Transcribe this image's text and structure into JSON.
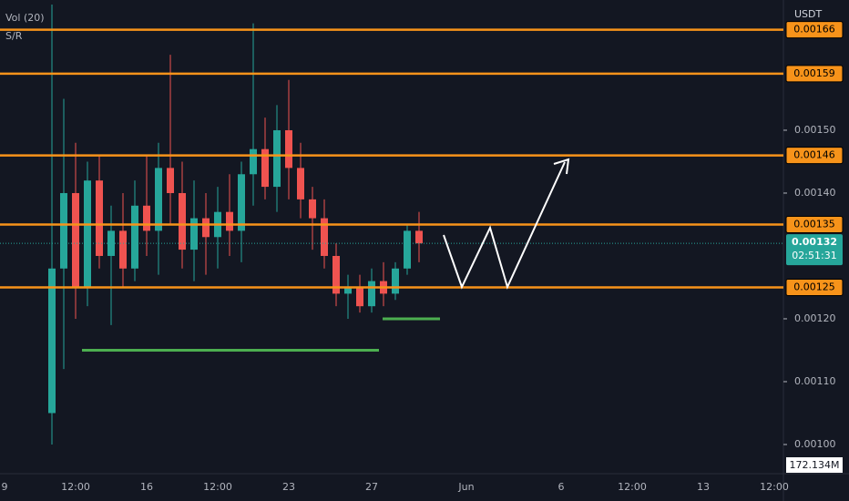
{
  "chart_data": {
    "type": "candlestick",
    "currency": "USDT",
    "indicators": [
      "Vol (20)",
      "S/R"
    ],
    "categories": [
      "9",
      null,
      null,
      null,
      null,
      null,
      "12:00",
      null,
      null,
      null,
      null,
      null,
      "16",
      null,
      null,
      null,
      null,
      null,
      "12:00",
      null,
      null,
      null,
      null,
      null,
      "23",
      null,
      null,
      null,
      null,
      null,
      null,
      "27",
      null,
      null,
      null,
      null,
      null,
      null,
      null,
      "Jun",
      null,
      null,
      null,
      null,
      null,
      null,
      null,
      "6",
      null,
      null,
      null,
      null,
      null,
      "12:00",
      null,
      null,
      null,
      null,
      null,
      "13",
      null,
      null,
      null,
      null,
      null,
      "12:00"
    ],
    "open": [
      null,
      null,
      null,
      null,
      0.00105,
      0.00128,
      0.0014,
      0.00125,
      0.00142,
      0.0013,
      0.00134,
      0.00128,
      0.00138,
      0.00134,
      0.00144,
      0.0014,
      0.00131,
      0.00136,
      0.00133,
      0.00137,
      0.00134,
      0.00143,
      0.00147,
      0.00141,
      0.0015,
      0.00144,
      0.00139,
      0.00136,
      0.0013,
      0.00124,
      0.00125,
      0.00122,
      0.00126,
      0.00124,
      0.00128,
      0.00134,
      null,
      null,
      null,
      null,
      null,
      null,
      null,
      null,
      null,
      null,
      null,
      null,
      null,
      null,
      null,
      null,
      null,
      null,
      null,
      null,
      null,
      null,
      null,
      null,
      null,
      null,
      null,
      null,
      null,
      null
    ],
    "high": [
      null,
      null,
      null,
      null,
      0.0017,
      0.00155,
      0.00148,
      0.00145,
      0.00146,
      0.00138,
      0.0014,
      0.00142,
      0.00146,
      0.00148,
      0.00162,
      0.00145,
      0.00142,
      0.0014,
      0.00141,
      0.00143,
      0.00145,
      0.00167,
      0.00152,
      0.00154,
      0.00158,
      0.00148,
      0.00141,
      0.00139,
      0.00132,
      0.00127,
      0.00127,
      0.00128,
      0.00129,
      0.00129,
      0.00135,
      0.00137,
      null,
      null,
      null,
      null,
      null,
      null,
      null,
      null,
      null,
      null,
      null,
      null,
      null,
      null,
      null,
      null,
      null,
      null,
      null,
      null,
      null,
      null,
      null,
      null,
      null,
      null,
      null,
      null,
      null,
      null
    ],
    "low": [
      null,
      null,
      null,
      null,
      0.001,
      0.00112,
      0.0012,
      0.00122,
      0.00128,
      0.00119,
      0.00125,
      0.00126,
      0.0013,
      0.00127,
      0.00135,
      0.00128,
      0.00126,
      0.00127,
      0.00128,
      0.0013,
      0.00129,
      0.00138,
      0.00139,
      0.00137,
      0.00139,
      0.00136,
      0.00131,
      0.00128,
      0.00122,
      0.0012,
      0.00121,
      0.00121,
      0.00122,
      0.00123,
      0.00127,
      0.00129,
      null,
      null,
      null,
      null,
      null,
      null,
      null,
      null,
      null,
      null,
      null,
      null,
      null,
      null,
      null,
      null,
      null,
      null,
      null,
      null,
      null,
      null,
      null,
      null,
      null,
      null,
      null,
      null,
      null,
      null
    ],
    "close": [
      null,
      null,
      null,
      null,
      0.00128,
      0.0014,
      0.00125,
      0.00142,
      0.0013,
      0.00134,
      0.00128,
      0.00138,
      0.00134,
      0.00144,
      0.0014,
      0.00131,
      0.00136,
      0.00133,
      0.00137,
      0.00134,
      0.00143,
      0.00147,
      0.00141,
      0.0015,
      0.00144,
      0.00139,
      0.00136,
      0.0013,
      0.00124,
      0.00125,
      0.00122,
      0.00126,
      0.00124,
      0.00128,
      0.00134,
      0.00132,
      null,
      null,
      null,
      null,
      null,
      null,
      null,
      null,
      null,
      null,
      null,
      null,
      null,
      null,
      null,
      null,
      null,
      null,
      null,
      null,
      null,
      null,
      null,
      null,
      null,
      null,
      null,
      null,
      null,
      null
    ],
    "up_color": "#26a69a",
    "down_color": "#ef5350",
    "level_color": "#f7931a",
    "support_color": "#4caf50",
    "ylim": [
      0.0009536,
      0.0017072
    ],
    "yticks": [
      {
        "value": 0.0015,
        "label": "0.00150"
      },
      {
        "value": 0.0014,
        "label": "0.00140"
      },
      {
        "value": 0.0012,
        "label": "0.00120"
      },
      {
        "value": 0.0011,
        "label": "0.00110"
      },
      {
        "value": 0.001,
        "label": "0.00100"
      }
    ],
    "levels": [
      {
        "value": 0.00166,
        "label": "0.00166"
      },
      {
        "value": 0.00159,
        "label": "0.00159"
      },
      {
        "value": 0.00146,
        "label": "0.00146"
      },
      {
        "value": 0.00135,
        "label": "0.00135"
      },
      {
        "value": 0.00125,
        "label": "0.00125"
      }
    ],
    "supports": [
      0.00115,
      0.0012
    ],
    "last_price": {
      "value": 0.00132,
      "label": "0.00132"
    },
    "countdown": "02:51:31",
    "volume_label": "172.134M"
  }
}
